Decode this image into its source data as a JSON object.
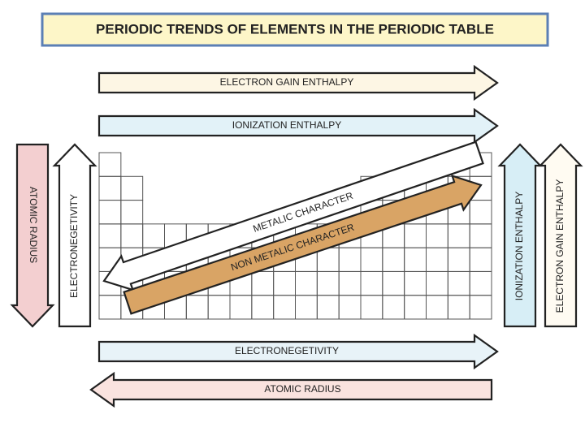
{
  "title": "PERIODIC TRENDS OF ELEMENTS IN THE PERIODIC TABLE",
  "arrows": [
    "ELECTRON GAIN ENTHALPY",
    "IONIZATION ENTHALPY",
    "ATOMIC RADIUS",
    "ELECTRONEGETIVITY",
    "METALIC CHARACTER",
    "NON METALIC CHARACTER",
    "IONIZATION ENTHALPY",
    "ELECTRON GAIN ENTHALPY",
    "ELECTRONEGETIVITY",
    "ATOMIC RADIUS"
  ]
}
